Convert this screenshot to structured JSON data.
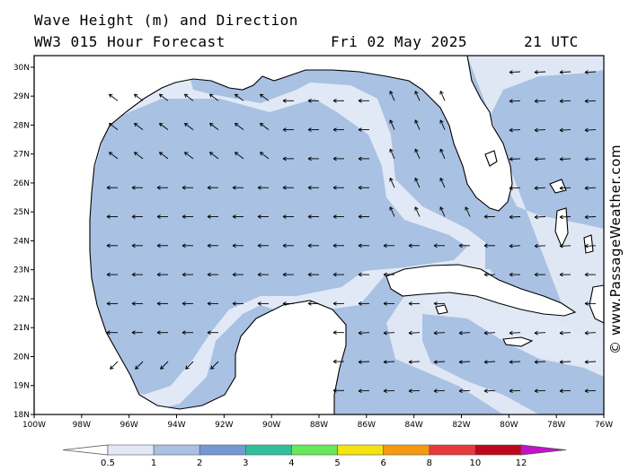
{
  "header": {
    "line1": "Wave Height (m) and Direction",
    "line2": "WW3 015 Hour Forecast",
    "date": "Fri 02 May 2025",
    "time": "21 UTC"
  },
  "copyright": "© www.PassageWeather.com",
  "map": {
    "lat_labels": [
      "30N",
      "29N",
      "28N",
      "27N",
      "26N",
      "25N",
      "24N",
      "23N",
      "22N",
      "21N",
      "20N",
      "19N",
      "18N"
    ],
    "lon_labels": [
      "100W",
      "98W",
      "96W",
      "94W",
      "92W",
      "90W",
      "88W",
      "86W",
      "84W",
      "82W",
      "80W",
      "78W",
      "76W"
    ],
    "lat_range": [
      18,
      30.4
    ],
    "lon_range": [
      -100,
      -76
    ],
    "arrow_direction": "toward west-northwest",
    "land_color": "#ffffff",
    "coast_color": "#000000"
  },
  "legend": {
    "ticks": [
      "0.5",
      "1",
      "2",
      "3",
      "4",
      "5",
      "6",
      "8",
      "10",
      "12"
    ],
    "colors": [
      "#e1e9f6",
      "#a9c1e3",
      "#7597d4",
      "#2fbf9b",
      "#66e85a",
      "#f5e30f",
      "#f59a10",
      "#e8383a",
      "#c0061c",
      "#c312c9"
    ]
  }
}
